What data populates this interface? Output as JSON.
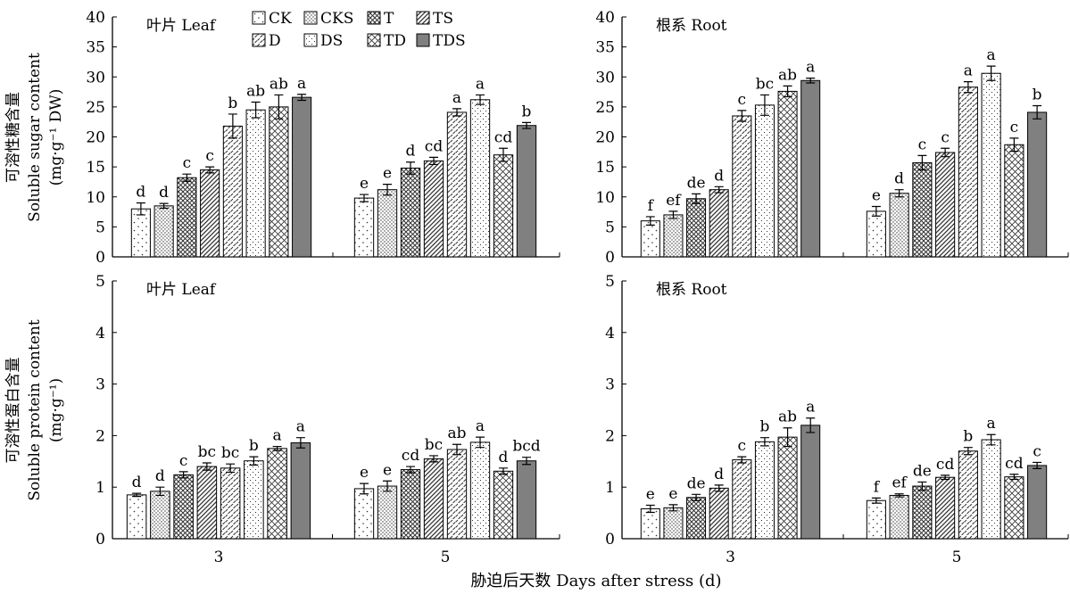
{
  "figure": {
    "xlabel": "胁迫后天数 Days after stress (d)",
    "ylabel_sugar_cn": "可溶性糖含量",
    "ylabel_sugar_en": "Soluble sugar content",
    "ylabel_sugar_unit": "(mg·g⁻¹ DW)",
    "ylabel_protein_cn": "可溶性蛋白含量",
    "ylabel_protein_en": "Soluble protein content",
    "ylabel_protein_unit": "(mg·g⁻¹)"
  },
  "legend": [
    "CK",
    "CKS",
    "T",
    "TS",
    "D",
    "DS",
    "TD",
    "TDS"
  ],
  "colors": {
    "bar_fill": "#ffffff",
    "tds_fill": "#808080",
    "pattern_ink": "#333333",
    "axis": "#000000"
  },
  "chart_data": [
    {
      "type": "bar",
      "panel_label": "叶片 Leaf",
      "measure": "sugar",
      "categories": [
        "3",
        "5"
      ],
      "ylim": [
        0,
        40
      ],
      "yticks": [
        0,
        5,
        10,
        15,
        20,
        25,
        30,
        35,
        40
      ],
      "series": [
        {
          "name": "CK",
          "values": [
            8.0,
            9.8
          ],
          "errors": [
            1.0,
            0.6
          ],
          "letters": [
            "d",
            "e"
          ]
        },
        {
          "name": "CKS",
          "values": [
            8.5,
            11.2
          ],
          "errors": [
            0.4,
            0.9
          ],
          "letters": [
            "d",
            "e"
          ]
        },
        {
          "name": "T",
          "values": [
            13.2,
            14.8
          ],
          "errors": [
            0.6,
            1.0
          ],
          "letters": [
            "c",
            "d"
          ]
        },
        {
          "name": "TS",
          "values": [
            14.5,
            16.0
          ],
          "errors": [
            0.5,
            0.6
          ],
          "letters": [
            "c",
            "cd"
          ]
        },
        {
          "name": "D",
          "values": [
            21.8,
            24.1
          ],
          "errors": [
            2.0,
            0.6
          ],
          "letters": [
            "b",
            "a"
          ]
        },
        {
          "name": "DS",
          "values": [
            24.5,
            26.2
          ],
          "errors": [
            1.3,
            0.8
          ],
          "letters": [
            "ab",
            "a"
          ]
        },
        {
          "name": "TD",
          "values": [
            25.0,
            17.0
          ],
          "errors": [
            2.0,
            1.1
          ],
          "letters": [
            "ab",
            "cd"
          ]
        },
        {
          "name": "TDS",
          "values": [
            26.6,
            21.9
          ],
          "errors": [
            0.5,
            0.5
          ],
          "letters": [
            "a",
            "b"
          ]
        }
      ]
    },
    {
      "type": "bar",
      "panel_label": "根系 Root",
      "measure": "sugar",
      "categories": [
        "3",
        "5"
      ],
      "ylim": [
        0,
        40
      ],
      "yticks": [
        0,
        5,
        10,
        15,
        20,
        25,
        30,
        35,
        40
      ],
      "series": [
        {
          "name": "CK",
          "values": [
            6.0,
            7.6
          ],
          "errors": [
            0.7,
            0.8
          ],
          "letters": [
            "f",
            "e"
          ]
        },
        {
          "name": "CKS",
          "values": [
            7.0,
            10.6
          ],
          "errors": [
            0.6,
            0.6
          ],
          "letters": [
            "ef",
            "d"
          ]
        },
        {
          "name": "T",
          "values": [
            9.7,
            15.7
          ],
          "errors": [
            0.8,
            1.2
          ],
          "letters": [
            "de",
            "c"
          ]
        },
        {
          "name": "TS",
          "values": [
            11.2,
            17.4
          ],
          "errors": [
            0.5,
            0.7
          ],
          "letters": [
            "d",
            "c"
          ]
        },
        {
          "name": "D",
          "values": [
            23.5,
            28.3
          ],
          "errors": [
            0.9,
            0.9
          ],
          "letters": [
            "c",
            "a"
          ]
        },
        {
          "name": "DS",
          "values": [
            25.3,
            30.6
          ],
          "errors": [
            1.7,
            1.2
          ],
          "letters": [
            "bc",
            "a"
          ]
        },
        {
          "name": "TD",
          "values": [
            27.6,
            18.7
          ],
          "errors": [
            0.9,
            1.1
          ],
          "letters": [
            "ab",
            "c"
          ]
        },
        {
          "name": "TDS",
          "values": [
            29.4,
            24.1
          ],
          "errors": [
            0.4,
            1.1
          ],
          "letters": [
            "a",
            "b"
          ]
        }
      ]
    },
    {
      "type": "bar",
      "panel_label": "叶片 Leaf",
      "measure": "protein",
      "categories": [
        "3",
        "5"
      ],
      "ylim": [
        0,
        5
      ],
      "yticks": [
        0,
        1,
        2,
        3,
        4,
        5
      ],
      "series": [
        {
          "name": "CK",
          "values": [
            0.85,
            0.97
          ],
          "errors": [
            0.03,
            0.1
          ],
          "letters": [
            "d",
            "e"
          ]
        },
        {
          "name": "CKS",
          "values": [
            0.92,
            1.02
          ],
          "errors": [
            0.08,
            0.1
          ],
          "letters": [
            "d",
            "e"
          ]
        },
        {
          "name": "T",
          "values": [
            1.24,
            1.34
          ],
          "errors": [
            0.06,
            0.06
          ],
          "letters": [
            "c",
            "cd"
          ]
        },
        {
          "name": "TS",
          "values": [
            1.4,
            1.55
          ],
          "errors": [
            0.07,
            0.06
          ],
          "letters": [
            "bc",
            "bc"
          ]
        },
        {
          "name": "D",
          "values": [
            1.37,
            1.73
          ],
          "errors": [
            0.08,
            0.1
          ],
          "letters": [
            "bc",
            "ab"
          ]
        },
        {
          "name": "DS",
          "values": [
            1.51,
            1.87
          ],
          "errors": [
            0.08,
            0.1
          ],
          "letters": [
            "b",
            "a"
          ]
        },
        {
          "name": "TD",
          "values": [
            1.75,
            1.31
          ],
          "errors": [
            0.04,
            0.06
          ],
          "letters": [
            "a",
            "d"
          ]
        },
        {
          "name": "TDS",
          "values": [
            1.86,
            1.51
          ],
          "errors": [
            0.1,
            0.07
          ],
          "letters": [
            "a",
            "bcd"
          ]
        }
      ]
    },
    {
      "type": "bar",
      "panel_label": "根系 Root",
      "measure": "protein",
      "categories": [
        "3",
        "5"
      ],
      "ylim": [
        0,
        5
      ],
      "yticks": [
        0,
        1,
        2,
        3,
        4,
        5
      ],
      "series": [
        {
          "name": "CK",
          "values": [
            0.58,
            0.74
          ],
          "errors": [
            0.07,
            0.05
          ],
          "letters": [
            "e",
            "f"
          ]
        },
        {
          "name": "CKS",
          "values": [
            0.6,
            0.84
          ],
          "errors": [
            0.06,
            0.03
          ],
          "letters": [
            "e",
            "ef"
          ]
        },
        {
          "name": "T",
          "values": [
            0.8,
            1.02
          ],
          "errors": [
            0.06,
            0.08
          ],
          "letters": [
            "de",
            "de"
          ]
        },
        {
          "name": "TS",
          "values": [
            0.98,
            1.19
          ],
          "errors": [
            0.06,
            0.04
          ],
          "letters": [
            "d",
            "cd"
          ]
        },
        {
          "name": "D",
          "values": [
            1.53,
            1.7
          ],
          "errors": [
            0.06,
            0.07
          ],
          "letters": [
            "c",
            "b"
          ]
        },
        {
          "name": "DS",
          "values": [
            1.88,
            1.92
          ],
          "errors": [
            0.08,
            0.1
          ],
          "letters": [
            "b",
            "a"
          ]
        },
        {
          "name": "TD",
          "values": [
            1.97,
            1.2
          ],
          "errors": [
            0.18,
            0.05
          ],
          "letters": [
            "ab",
            "cd"
          ]
        },
        {
          "name": "TDS",
          "values": [
            2.2,
            1.42
          ],
          "errors": [
            0.14,
            0.06
          ],
          "letters": [
            "a",
            "c"
          ]
        }
      ]
    }
  ]
}
